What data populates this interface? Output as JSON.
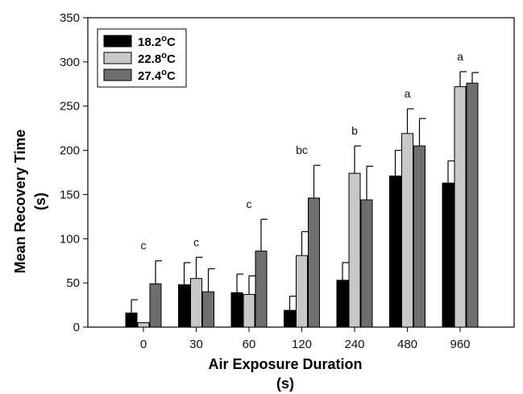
{
  "chart_data": {
    "type": "bar",
    "ylim": [
      0,
      350
    ],
    "yticks": [
      "0",
      "50",
      "100",
      "150",
      "200",
      "250",
      "300",
      "350"
    ],
    "xlabel": "Air Exposure Duration",
    "xlabel_unit": "(s)",
    "ylabel": "Mean Recovery Time",
    "ylabel_unit": "(s)",
    "categories": [
      "0",
      "30",
      "60",
      "120",
      "240",
      "480",
      "960"
    ],
    "legend_position": "top-left",
    "grid": false,
    "series": [
      {
        "name": "18.2",
        "unit": "oC",
        "color": "#000000",
        "values": [
          16,
          48,
          39,
          19,
          53,
          171,
          163
        ],
        "errors": [
          15,
          25,
          21,
          16,
          20,
          29,
          25
        ]
      },
      {
        "name": "22.8",
        "unit": "oC",
        "color": "#c8c8c8",
        "values": [
          5,
          55,
          37,
          81,
          174,
          219,
          272
        ],
        "errors": [
          0,
          24,
          21,
          27,
          31,
          28,
          17
        ]
      },
      {
        "name": "27.4",
        "unit": "oC",
        "color": "#6e6e6e",
        "values": [
          49,
          40,
          86,
          146,
          144,
          205,
          276
        ],
        "errors": [
          26,
          26,
          36,
          37,
          38,
          31,
          12
        ]
      }
    ],
    "significance_labels": [
      "c",
      "c",
      "c",
      "bc",
      "b",
      "a",
      "a"
    ]
  }
}
